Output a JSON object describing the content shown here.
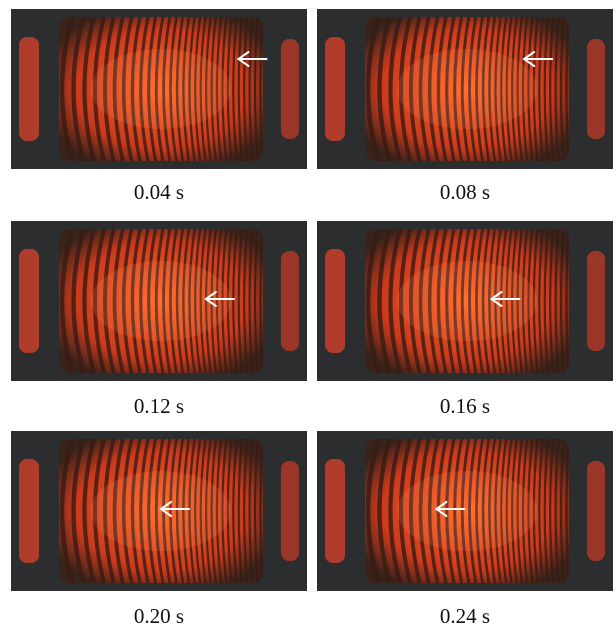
{
  "panels": [
    {
      "time_label": "0.04 s",
      "arrow_fraction": 0.88
    },
    {
      "time_label": "0.08 s",
      "arrow_fraction": 0.78
    },
    {
      "time_label": "0.12 s",
      "arrow_fraction": 0.72
    },
    {
      "time_label": "0.16 s",
      "arrow_fraction": 0.62
    },
    {
      "time_label": "0.20 s",
      "arrow_fraction": 0.5
    },
    {
      "time_label": "0.24 s",
      "arrow_fraction": 0.35
    }
  ],
  "colors": {
    "background": "#2b2d2e",
    "fringe_bright": "#ff6a2a",
    "fringe_dark": "#3a1a12",
    "arrow": "#ffffff",
    "caption_text": "#111111"
  }
}
